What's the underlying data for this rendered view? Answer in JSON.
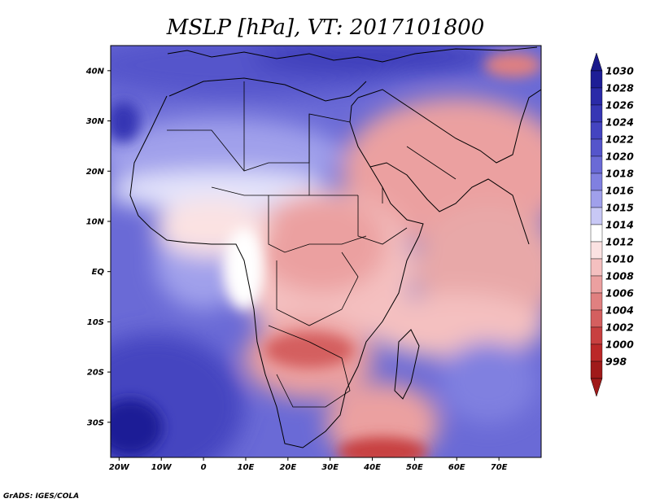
{
  "title": "MSLP [hPa], VT: 2017101800",
  "credit": "GrADS: IGES/COLA",
  "map": {
    "lon_range": [
      -22,
      80
    ],
    "lat_range": [
      -37,
      45
    ],
    "x_ticks": [
      "20W",
      "10W",
      "0",
      "10E",
      "20E",
      "30E",
      "40E",
      "50E",
      "60E",
      "70E"
    ],
    "y_ticks": [
      "40N",
      "30N",
      "20N",
      "10N",
      "EQ",
      "10S",
      "20S",
      "30S"
    ]
  },
  "colorbar": {
    "labels": [
      "1030",
      "1028",
      "1026",
      "1024",
      "1022",
      "1020",
      "1018",
      "1016",
      "1015",
      "1014",
      "1012",
      "1010",
      "1008",
      "1006",
      "1004",
      "1002",
      "1000",
      "998"
    ],
    "colors": [
      "#1e1e96",
      "#2a2aa8",
      "#3636b4",
      "#4444c0",
      "#5555cb",
      "#6a6ad6",
      "#8080e0",
      "#a0a0eb",
      "#c8c8f5",
      "#ffffff",
      "#fbe2e2",
      "#f4c0c0",
      "#eba0a0",
      "#e08080",
      "#d45f5f",
      "#c84040",
      "#bb2828",
      "#a01a1a"
    ],
    "top_arrow_color": "#1a1a8c",
    "bottom_arrow_color": "#a01a1a"
  }
}
